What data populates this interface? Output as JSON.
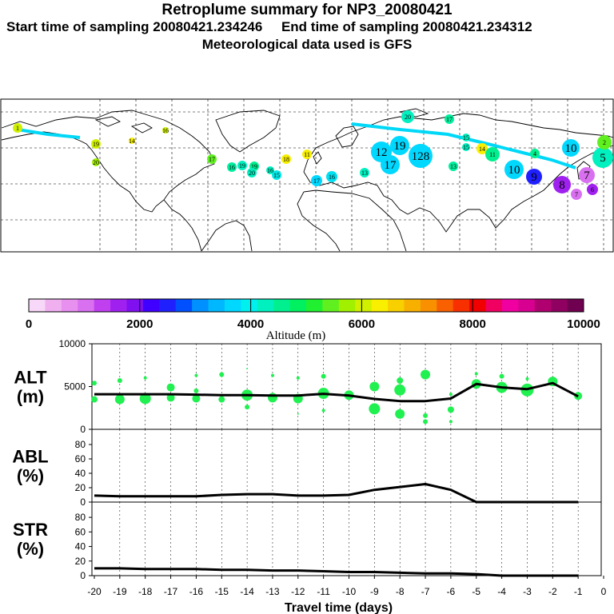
{
  "header": {
    "title": "Retroplume summary for NP3_20080421",
    "sampling_line": "Start time of sampling 20080421.234246     End time of sampling 20080421.234312",
    "met_line": "Meteorological data used is GFS"
  },
  "colorbar": {
    "tick_labels": [
      "0",
      "2000",
      "4000",
      "6000",
      "8000",
      "10000"
    ],
    "label": "Altitude (m)",
    "colors": [
      "#f8d8f8",
      "#f0b0f0",
      "#e890f0",
      "#d870f0",
      "#c040f0",
      "#a020f0",
      "#8010f0",
      "#4000ff",
      "#2020ff",
      "#0050ff",
      "#0090ff",
      "#00b8ff",
      "#00d8ff",
      "#00f0f0",
      "#00f0c0",
      "#00f090",
      "#00f060",
      "#20f030",
      "#60f020",
      "#a0f000",
      "#d0f000",
      "#f8f000",
      "#f8d000",
      "#f8b000",
      "#f89000",
      "#f86000",
      "#f83000",
      "#f00000",
      "#f00060",
      "#f000a0",
      "#d80090",
      "#b00070",
      "#900060",
      "#700050"
    ]
  },
  "map": {
    "markers": [
      {
        "label": "1",
        "color": "#d0f000"
      },
      {
        "label": "19",
        "color": "#d0f000"
      },
      {
        "label": "14",
        "color": "#f8f000"
      },
      {
        "label": "16",
        "color": "#d0f000"
      },
      {
        "label": "20",
        "color": "#a0f000"
      },
      {
        "label": "17",
        "color": "#60f020"
      },
      {
        "label": "16",
        "color": "#00f0a0"
      },
      {
        "label": "19",
        "color": "#00f0c0"
      },
      {
        "label": "19",
        "color": "#00f090"
      },
      {
        "label": "20",
        "color": "#00f0c0"
      },
      {
        "label": "16",
        "color": "#00f0c0"
      },
      {
        "label": "15",
        "color": "#00e8e8"
      },
      {
        "label": "18",
        "color": "#f8f000"
      },
      {
        "label": "11",
        "color": "#f8f000"
      },
      {
        "label": "17",
        "color": "#00d8ff"
      },
      {
        "label": "16",
        "color": "#00e0f0"
      },
      {
        "label": "13",
        "color": "#00f0c0"
      },
      {
        "label": "12",
        "color": "#00d8ff"
      },
      {
        "label": "19",
        "color": "#00d8ff"
      },
      {
        "label": "17",
        "color": "#00d8ff"
      },
      {
        "label": "128",
        "color": "#00d8ff"
      },
      {
        "label": "13",
        "color": "#00f0a0"
      },
      {
        "label": "20",
        "color": "#00f0c0"
      },
      {
        "label": "17",
        "color": "#00f0a0"
      },
      {
        "label": "15",
        "color": "#00f0c0"
      },
      {
        "label": "15",
        "color": "#00f0c0"
      },
      {
        "label": "14",
        "color": "#f8f000"
      },
      {
        "label": "11",
        "color": "#00f090"
      },
      {
        "label": "10",
        "color": "#00d8ff"
      },
      {
        "label": "9",
        "color": "#2020ff"
      },
      {
        "label": "8",
        "color": "#a020f0"
      },
      {
        "label": "7",
        "color": "#d870f0"
      },
      {
        "label": "6",
        "color": "#a020f0"
      },
      {
        "label": "7",
        "color": "#d870f0"
      },
      {
        "label": "5",
        "color": "#00f0c0"
      },
      {
        "label": "10",
        "color": "#00d8ff"
      },
      {
        "label": "2",
        "color": "#60f020"
      },
      {
        "label": "4",
        "color": "#00f090"
      }
    ]
  },
  "chart_data": [
    {
      "type": "line",
      "name": "ALT",
      "ylabel": "ALT\n(m)",
      "ylim": [
        0,
        10000
      ],
      "yticks": [
        "10000",
        "5000",
        "0"
      ],
      "x": [
        -20,
        -19,
        -18,
        -17,
        -16,
        -15,
        -14,
        -13,
        -12,
        -11,
        -10,
        -9,
        -8,
        -7,
        -6,
        -5,
        -4,
        -3,
        -2,
        -1
      ],
      "mean": [
        4100,
        4100,
        4100,
        4100,
        4050,
        4000,
        4000,
        3950,
        3950,
        4150,
        3950,
        3550,
        3300,
        3300,
        3600,
        5300,
        4900,
        4700,
        5400,
        3850
      ],
      "scatter_points": [
        {
          "x": -20,
          "y": 5400,
          "r": 3
        },
        {
          "x": -20,
          "y": 3500,
          "r": 4
        },
        {
          "x": -19,
          "y": 5700,
          "r": 3
        },
        {
          "x": -19,
          "y": 3500,
          "r": 6
        },
        {
          "x": -18,
          "y": 6000,
          "r": 2
        },
        {
          "x": -18,
          "y": 3600,
          "r": 7
        },
        {
          "x": -17,
          "y": 4900,
          "r": 5
        },
        {
          "x": -17,
          "y": 3700,
          "r": 5
        },
        {
          "x": -16,
          "y": 6300,
          "r": 2
        },
        {
          "x": -16,
          "y": 3600,
          "r": 5
        },
        {
          "x": -16,
          "y": 4500,
          "r": 3
        },
        {
          "x": -15,
          "y": 6400,
          "r": 3
        },
        {
          "x": -15,
          "y": 3500,
          "r": 4
        },
        {
          "x": -14,
          "y": 7100,
          "r": 1
        },
        {
          "x": -14,
          "y": 4000,
          "r": 7
        },
        {
          "x": -14,
          "y": 2600,
          "r": 3
        },
        {
          "x": -13,
          "y": 6300,
          "r": 2
        },
        {
          "x": -13,
          "y": 3700,
          "r": 6
        },
        {
          "x": -12,
          "y": 6000,
          "r": 2
        },
        {
          "x": -12,
          "y": 3600,
          "r": 6
        },
        {
          "x": -12,
          "y": 1800,
          "r": 1
        },
        {
          "x": -11,
          "y": 6200,
          "r": 3
        },
        {
          "x": -11,
          "y": 4200,
          "r": 7
        },
        {
          "x": -11,
          "y": 2200,
          "r": 2
        },
        {
          "x": -10,
          "y": 4000,
          "r": 6
        },
        {
          "x": -9,
          "y": 5000,
          "r": 6
        },
        {
          "x": -9,
          "y": 2400,
          "r": 7
        },
        {
          "x": -8,
          "y": 5700,
          "r": 4
        },
        {
          "x": -8,
          "y": 4600,
          "r": 7
        },
        {
          "x": -8,
          "y": 1800,
          "r": 6
        },
        {
          "x": -7,
          "y": 6400,
          "r": 6
        },
        {
          "x": -7,
          "y": 1600,
          "r": 3
        },
        {
          "x": -7,
          "y": 900,
          "r": 3
        },
        {
          "x": -6,
          "y": 4100,
          "r": 2
        },
        {
          "x": -6,
          "y": 2300,
          "r": 4
        },
        {
          "x": -6,
          "y": 900,
          "r": 2
        },
        {
          "x": -5,
          "y": 6500,
          "r": 2
        },
        {
          "x": -5,
          "y": 5300,
          "r": 6
        },
        {
          "x": -4,
          "y": 6200,
          "r": 3
        },
        {
          "x": -4,
          "y": 4900,
          "r": 7
        },
        {
          "x": -3,
          "y": 5900,
          "r": 2
        },
        {
          "x": -3,
          "y": 4600,
          "r": 8
        },
        {
          "x": -2,
          "y": 5600,
          "r": 6
        },
        {
          "x": -1,
          "y": 3900,
          "r": 5
        }
      ]
    },
    {
      "type": "line",
      "name": "ABL",
      "ylabel": "ABL\n(%)",
      "ylim": [
        0,
        90
      ],
      "yticks": [
        "80",
        "60",
        "40",
        "20",
        "0"
      ],
      "x": [
        -20,
        -19,
        -18,
        -17,
        -16,
        -15,
        -14,
        -13,
        -12,
        -11,
        -10,
        -9,
        -8,
        -7,
        -6,
        -5,
        -4,
        -3,
        -2,
        -1
      ],
      "values": [
        9,
        8,
        8,
        8,
        8,
        10,
        11,
        11,
        9,
        9,
        10,
        17,
        21,
        25,
        17,
        0,
        0,
        0,
        0,
        0
      ]
    },
    {
      "type": "line",
      "name": "STR",
      "ylabel": "STR\n(%)",
      "ylim": [
        0,
        90
      ],
      "yticks": [
        "80",
        "60",
        "40",
        "20",
        "0"
      ],
      "x": [
        -20,
        -19,
        -18,
        -17,
        -16,
        -15,
        -14,
        -13,
        -12,
        -11,
        -10,
        -9,
        -8,
        -7,
        -6,
        -5,
        -4,
        -3,
        -2,
        -1
      ],
      "values": [
        10,
        10,
        9,
        9,
        9,
        8,
        8,
        7,
        7,
        6,
        5,
        5,
        4,
        3,
        3,
        2,
        0,
        0,
        0,
        0
      ],
      "xticks": [
        "-20",
        "-19",
        "-18",
        "-17",
        "-16",
        "-15",
        "-14",
        "-13",
        "-12",
        "-11",
        "-10",
        "-9",
        "-8",
        "-7",
        "-6",
        "-5",
        "-4",
        "-3",
        "-2",
        "-1",
        "0"
      ],
      "xlabel": "Travel time (days)"
    }
  ]
}
